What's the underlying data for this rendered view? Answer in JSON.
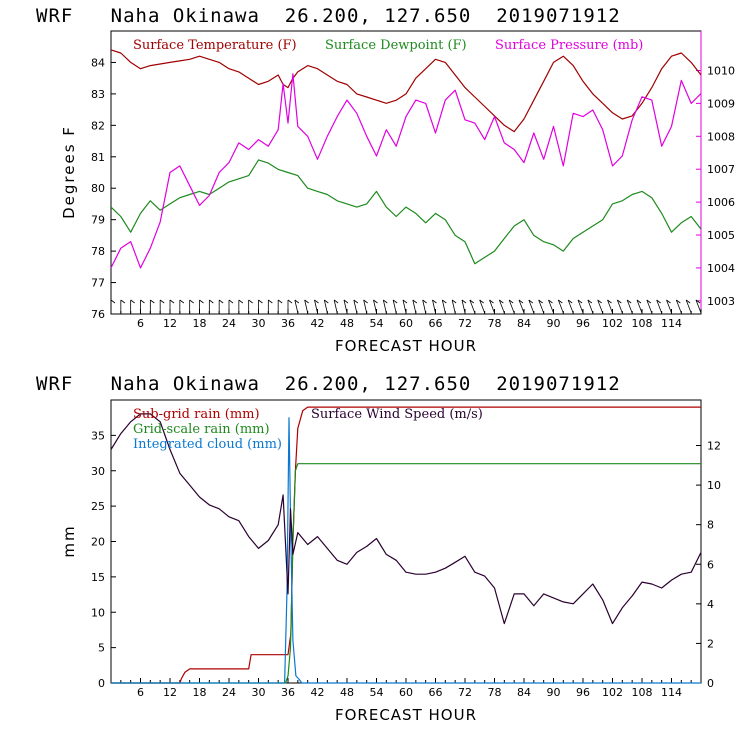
{
  "colors": {
    "temperature": "#a00000",
    "dewpoint": "#1e8a1e",
    "pressure": "#e000e0",
    "subgrid": "#b00000",
    "gridscale": "#1e8a1e",
    "cloud": "#0a78d0",
    "wind": "#2a0030"
  },
  "chart_data": [
    {
      "type": "line",
      "title": "WRF   Naha Okinawa  26.200, 127.650  2019071912",
      "xlabel": "FORECAST HOUR",
      "ylabel": "Degrees F",
      "xlim": [
        0,
        120
      ],
      "ylim": [
        76,
        85
      ],
      "y2lim": [
        1002.6,
        1011.2
      ],
      "x_ticks": [
        "6",
        "12",
        "18",
        "24",
        "30",
        "36",
        "42",
        "48",
        "54",
        "60",
        "66",
        "72",
        "78",
        "84",
        "90",
        "96",
        "102",
        "108",
        "114"
      ],
      "y_ticks": [
        "76",
        "77",
        "78",
        "79",
        "80",
        "81",
        "82",
        "83",
        "84"
      ],
      "y2_ticks": [
        "1003",
        "1004",
        "1005",
        "1006",
        "1007",
        "1008",
        "1009",
        "1010"
      ],
      "wind_barbs": "row of wind barbs along bottom axis",
      "series": [
        {
          "name": "Surface Temperature (F)",
          "axis": "left",
          "x": [
            0,
            2,
            4,
            6,
            8,
            10,
            12,
            14,
            16,
            18,
            20,
            22,
            24,
            26,
            28,
            30,
            32,
            34,
            35,
            36,
            37,
            38,
            40,
            42,
            44,
            46,
            48,
            50,
            52,
            54,
            56,
            58,
            60,
            62,
            64,
            66,
            68,
            70,
            72,
            74,
            76,
            78,
            80,
            82,
            84,
            86,
            88,
            90,
            92,
            94,
            96,
            98,
            100,
            102,
            104,
            106,
            108,
            110,
            112,
            114,
            116,
            118,
            120
          ],
          "values": [
            84.4,
            84.3,
            84.0,
            83.8,
            83.9,
            83.95,
            84.0,
            84.05,
            84.1,
            84.2,
            84.1,
            84.0,
            83.8,
            83.7,
            83.5,
            83.3,
            83.4,
            83.6,
            83.3,
            83.2,
            83.5,
            83.7,
            83.9,
            83.8,
            83.6,
            83.4,
            83.3,
            83.0,
            82.9,
            82.8,
            82.7,
            82.8,
            83.0,
            83.5,
            83.8,
            84.1,
            84.0,
            83.6,
            83.2,
            82.9,
            82.6,
            82.3,
            82.0,
            81.8,
            82.2,
            82.8,
            83.4,
            84.0,
            84.2,
            83.9,
            83.4,
            83.0,
            82.7,
            82.4,
            82.2,
            82.3,
            82.7,
            83.2,
            83.8,
            84.2,
            84.3,
            84.0,
            83.6
          ]
        },
        {
          "name": "Surface Dewpoint (F)",
          "axis": "left",
          "x": [
            0,
            2,
            4,
            6,
            8,
            10,
            12,
            14,
            16,
            18,
            20,
            22,
            24,
            26,
            28,
            30,
            32,
            34,
            36,
            38,
            40,
            42,
            44,
            46,
            48,
            50,
            52,
            54,
            56,
            58,
            60,
            62,
            64,
            66,
            68,
            70,
            72,
            74,
            76,
            78,
            80,
            82,
            84,
            86,
            88,
            90,
            92,
            94,
            96,
            98,
            100,
            102,
            104,
            106,
            108,
            110,
            112,
            114,
            116,
            118,
            120
          ],
          "values": [
            79.4,
            79.1,
            78.6,
            79.2,
            79.6,
            79.3,
            79.5,
            79.7,
            79.8,
            79.9,
            79.8,
            80.0,
            80.2,
            80.3,
            80.4,
            80.9,
            80.8,
            80.6,
            80.5,
            80.4,
            80.0,
            79.9,
            79.8,
            79.6,
            79.5,
            79.4,
            79.5,
            79.9,
            79.4,
            79.1,
            79.4,
            79.2,
            78.9,
            79.2,
            79.0,
            78.5,
            78.3,
            77.6,
            77.8,
            78.0,
            78.4,
            78.8,
            79.0,
            78.5,
            78.3,
            78.2,
            78.0,
            78.4,
            78.6,
            78.8,
            79.0,
            79.5,
            79.6,
            79.8,
            79.9,
            79.7,
            79.2,
            78.6,
            78.9,
            79.1,
            78.7
          ]
        },
        {
          "name": "Surface Pressure (mb)",
          "axis": "right",
          "x": [
            0,
            2,
            4,
            6,
            8,
            10,
            12,
            14,
            16,
            18,
            20,
            22,
            24,
            26,
            28,
            30,
            32,
            34,
            35,
            36,
            37,
            38,
            40,
            42,
            44,
            46,
            48,
            50,
            52,
            54,
            56,
            58,
            60,
            62,
            64,
            66,
            68,
            70,
            72,
            74,
            76,
            78,
            80,
            82,
            84,
            86,
            88,
            90,
            92,
            94,
            96,
            98,
            100,
            102,
            104,
            106,
            108,
            110,
            112,
            114,
            116,
            118,
            120
          ],
          "values": [
            1004.0,
            1004.6,
            1004.8,
            1004.0,
            1004.6,
            1005.4,
            1006.9,
            1007.1,
            1006.5,
            1005.9,
            1006.2,
            1006.9,
            1007.2,
            1007.8,
            1007.6,
            1007.9,
            1007.7,
            1008.2,
            1009.6,
            1008.4,
            1009.9,
            1008.3,
            1008.0,
            1007.3,
            1008.0,
            1008.6,
            1009.1,
            1008.7,
            1008.0,
            1007.4,
            1008.2,
            1007.7,
            1008.6,
            1009.1,
            1009.0,
            1008.1,
            1009.1,
            1009.4,
            1008.5,
            1008.4,
            1007.9,
            1008.6,
            1007.8,
            1007.6,
            1007.2,
            1008.1,
            1007.3,
            1008.3,
            1007.1,
            1008.7,
            1008.6,
            1008.8,
            1008.2,
            1007.1,
            1007.4,
            1008.5,
            1009.2,
            1009.1,
            1007.7,
            1008.3,
            1009.7,
            1009.0,
            1009.3
          ]
        }
      ]
    },
    {
      "type": "line",
      "title": "WRF   Naha Okinawa  26.200, 127.650  2019071912",
      "xlabel": "FORECAST HOUR",
      "ylabel": "mm",
      "xlim": [
        0,
        120
      ],
      "ylim": [
        0,
        40
      ],
      "y2lim": [
        0,
        14.3
      ],
      "x_ticks": [
        "6",
        "12",
        "18",
        "24",
        "30",
        "36",
        "42",
        "48",
        "54",
        "60",
        "66",
        "72",
        "78",
        "84",
        "90",
        "96",
        "102",
        "108",
        "114"
      ],
      "y_ticks": [
        "0",
        "5",
        "10",
        "15",
        "20",
        "25",
        "30",
        "35"
      ],
      "y2_ticks": [
        "0",
        "2",
        "4",
        "6",
        "8",
        "10",
        "12"
      ],
      "series": [
        {
          "name": "Sub-grid rain (mm)",
          "axis": "left",
          "x": [
            0,
            14,
            14.3,
            15,
            16,
            28,
            28.5,
            36,
            36.6,
            37,
            37.5,
            38,
            39,
            40,
            120
          ],
          "values": [
            0,
            0,
            0.6,
            1.5,
            2,
            2,
            4,
            4,
            7,
            20,
            30,
            36,
            38.5,
            39,
            39
          ]
        },
        {
          "name": "Grid-scale rain (mm)",
          "axis": "left",
          "x": [
            0,
            35.5,
            36,
            36.5,
            37,
            37.5,
            38,
            38.6,
            120
          ],
          "values": [
            0,
            0,
            1,
            5,
            20,
            30,
            31,
            31,
            31
          ]
        },
        {
          "name": "Integrated cloud (mm)",
          "axis": "left",
          "x": [
            0,
            35.3,
            35.8,
            36.2,
            36.6,
            37,
            37.6,
            38.3,
            38.8,
            120
          ],
          "values": [
            0,
            0,
            13,
            37.5,
            20,
            6,
            1,
            0.5,
            0,
            0
          ]
        },
        {
          "name": "Surface Wind Speed (m/s)",
          "axis": "right",
          "x": [
            0,
            2,
            4,
            6,
            8,
            10,
            12,
            14,
            16,
            18,
            20,
            22,
            24,
            26,
            28,
            30,
            32,
            34,
            35,
            36,
            36.5,
            37,
            38,
            40,
            42,
            44,
            46,
            48,
            50,
            52,
            54,
            56,
            58,
            60,
            62,
            64,
            66,
            68,
            70,
            72,
            74,
            76,
            78,
            80,
            82,
            84,
            86,
            88,
            90,
            92,
            94,
            96,
            98,
            100,
            102,
            104,
            106,
            108,
            110,
            112,
            114,
            116,
            118,
            120
          ],
          "values": [
            11.8,
            12.6,
            13.2,
            13.6,
            13.6,
            13.2,
            11.8,
            10.6,
            10.0,
            9.4,
            9.0,
            8.8,
            8.4,
            8.2,
            7.4,
            6.8,
            7.2,
            8.0,
            9.5,
            4.5,
            8.8,
            6.5,
            7.6,
            7.0,
            7.4,
            6.8,
            6.2,
            6.0,
            6.6,
            6.9,
            7.3,
            6.5,
            6.2,
            5.6,
            5.5,
            5.5,
            5.6,
            5.8,
            6.1,
            6.4,
            5.6,
            5.4,
            4.8,
            3.0,
            4.5,
            4.5,
            3.9,
            4.5,
            4.3,
            4.1,
            4.0,
            4.5,
            5.0,
            4.2,
            3.0,
            3.8,
            4.4,
            5.1,
            5.0,
            4.8,
            5.2,
            5.5,
            5.6,
            6.6
          ]
        }
      ]
    }
  ]
}
